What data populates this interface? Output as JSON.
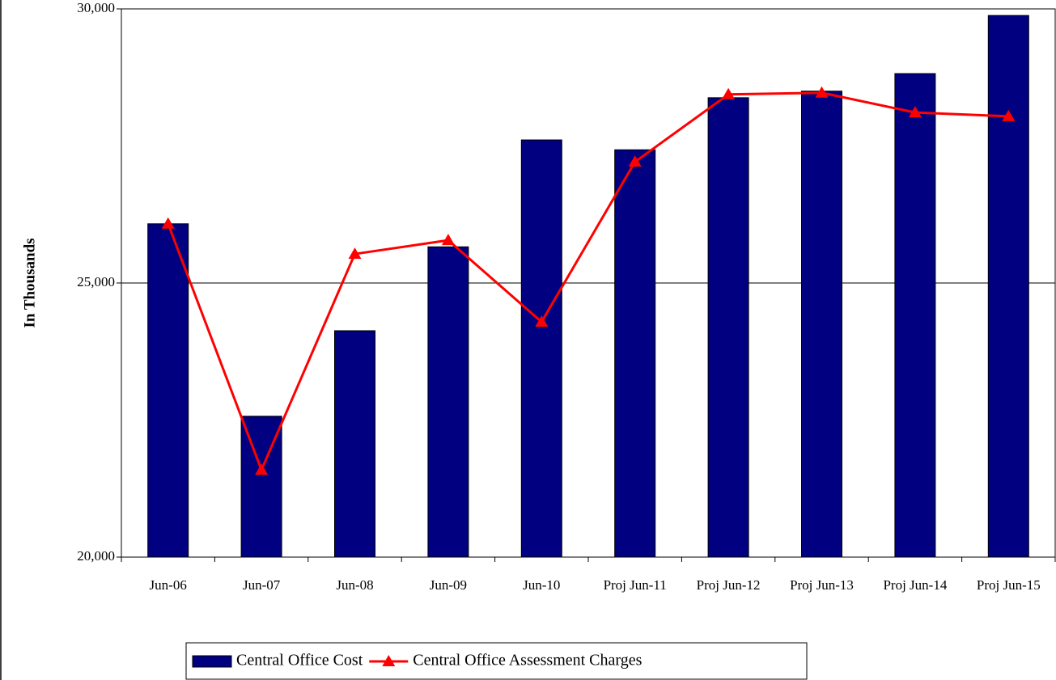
{
  "chart_data": {
    "type": "bar-line",
    "y_label": "In Thousands",
    "categories": [
      "Jun-06",
      "Jun-07",
      "Jun-08",
      "Jun-09",
      "Jun-10",
      "Proj Jun-11",
      "Proj Jun-12",
      "Proj Jun-13",
      "Proj Jun-14",
      "Proj Jun-15"
    ],
    "series": [
      {
        "name": "Central Office Cost",
        "type": "bar",
        "color": "#000080",
        "values": [
          26080,
          22570,
          24130,
          25660,
          27610,
          27430,
          28380,
          28500,
          28820,
          29880
        ]
      },
      {
        "name": "Central Office Assessment Charges",
        "type": "line",
        "color": "#ff0000",
        "values": [
          26080,
          21590,
          25530,
          25780,
          24290,
          27210,
          28440,
          28470,
          28110,
          28040
        ]
      }
    ],
    "ylim": [
      20000,
      30000
    ],
    "yticks": [
      {
        "value": 20000,
        "label": "20,000"
      },
      {
        "value": 25000,
        "label": "25,000"
      },
      {
        "value": 30000,
        "label": "30,000"
      }
    ],
    "grid": true,
    "legend": "bottom"
  }
}
